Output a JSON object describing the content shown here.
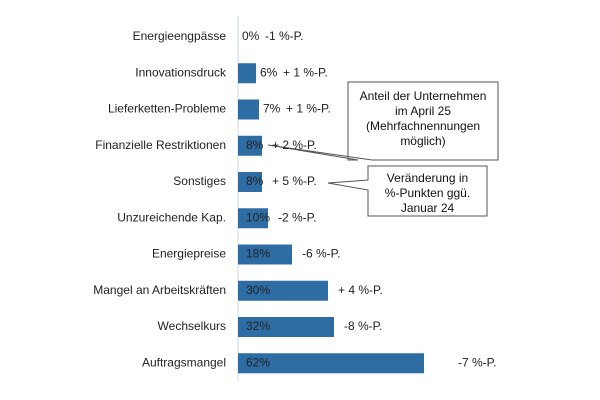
{
  "chart_data": {
    "type": "bar",
    "orientation": "horizontal",
    "categories": [
      "Energieengpässe",
      "Innovationsdruck",
      "Lieferketten-Probleme",
      "Finanzielle Restriktionen",
      "Sonstiges",
      "Unzureichende Kap.",
      "Energiepreise",
      "Mangel an Arbeitskräften",
      "Wechselkurs",
      "Auftragsmangel"
    ],
    "values": [
      0,
      6,
      7,
      8,
      8,
      10,
      18,
      30,
      32,
      62
    ],
    "value_labels": [
      "0%",
      "6%",
      "7%",
      "8%",
      "8%",
      "10%",
      "18%",
      "30%",
      "32%",
      "62%"
    ],
    "color": "#2e6da4",
    "xlim": [
      0,
      100
    ],
    "change_labels": [
      "-1 %-P.",
      "+ 1 %-P.",
      "+ 1 %-P.",
      "+ 2 %-P.",
      "+ 5 %-P.",
      "-2 %-P.",
      "-6 %-P.",
      "+ 4 %-P.",
      "-8 %-P.",
      "-7 %-P."
    ],
    "change_colors": [
      "#c0392b",
      "#4aa84a",
      "#c0392b",
      "#111111",
      "#4aa84a",
      "#c0392b",
      "#c0392b",
      "#4aa84a",
      "#c0392b",
      "#c0392b"
    ],
    "annotations": [
      {
        "lines": [
          "Anteil der Unternehmen",
          "im April 25",
          "(Mehrfachnennungen",
          "möglich)"
        ]
      },
      {
        "lines": [
          "Veränderung in",
          "%-Punkten ggü.",
          "Januar 24"
        ]
      }
    ]
  }
}
